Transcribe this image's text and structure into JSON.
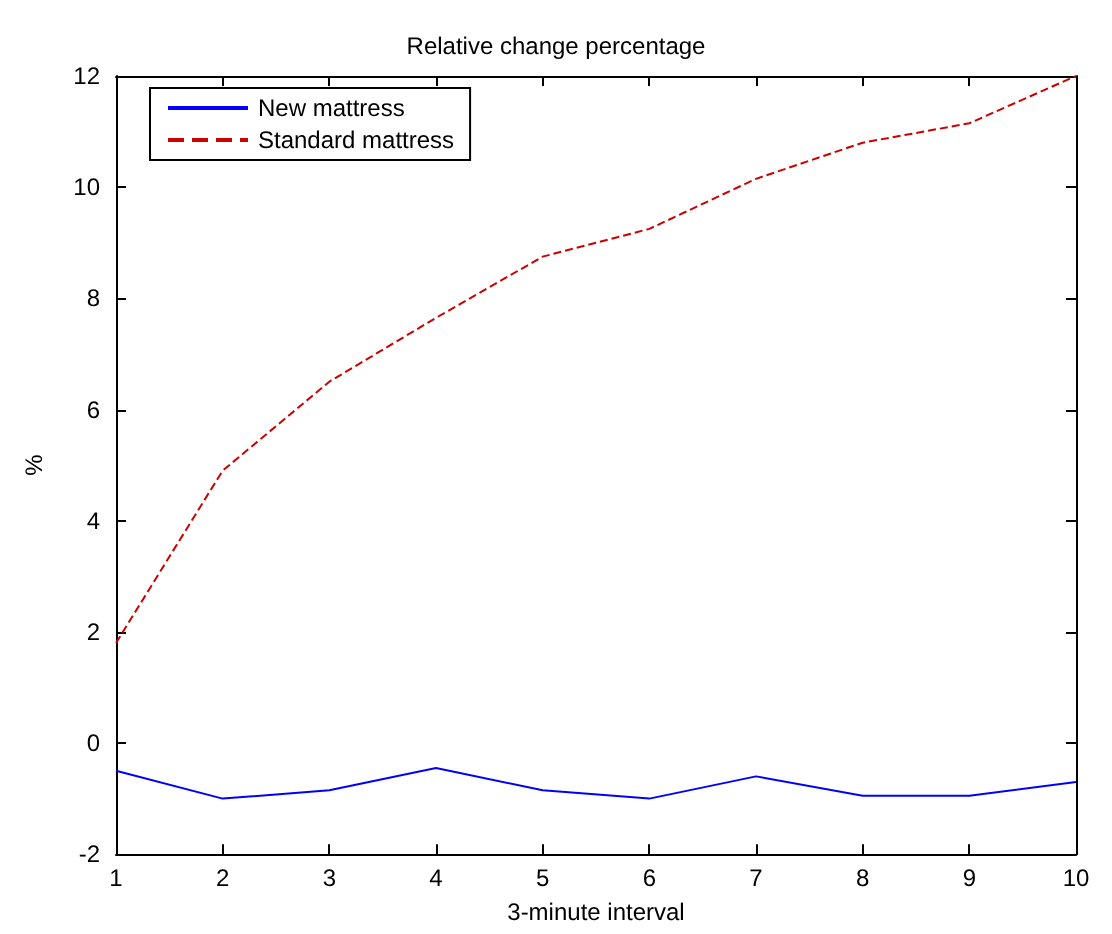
{
  "chart_data": {
    "type": "line",
    "title": "Relative change percentage",
    "xlabel": "3-minute interval",
    "ylabel": "%",
    "x": [
      1,
      2,
      3,
      4,
      5,
      6,
      7,
      8,
      9,
      10
    ],
    "series": [
      {
        "name": "New mattress",
        "color": "#0000ff",
        "line_style": "solid",
        "values": [
          -0.5,
          -1.0,
          -0.85,
          -0.45,
          -0.85,
          -1.0,
          -0.6,
          -0.95,
          -0.95,
          -0.7
        ]
      },
      {
        "name": "Standard mattress",
        "color": "#cc0000",
        "line_style": "dashed",
        "values": [
          1.8,
          4.9,
          6.5,
          7.65,
          8.75,
          9.25,
          10.15,
          10.8,
          11.15,
          12.0
        ]
      }
    ],
    "xlim": [
      1,
      10
    ],
    "xticks": [
      1,
      2,
      3,
      4,
      5,
      6,
      7,
      8,
      9,
      10
    ],
    "ylim": [
      -2,
      12
    ],
    "yticks": [
      -2,
      0,
      2,
      4,
      6,
      8,
      10,
      12
    ],
    "grid": false,
    "legend": "top left",
    "marker": "none"
  }
}
